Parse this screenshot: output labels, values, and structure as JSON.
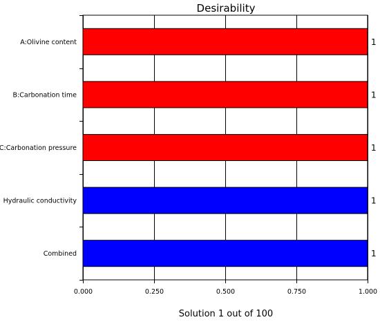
{
  "chart_data": {
    "type": "bar",
    "orientation": "horizontal",
    "title": "Desirability",
    "footer": "Solution 1 out of 100",
    "categories": [
      "A:Olivine content",
      "B:Carbonation time",
      "C:Carbonation pressure",
      "Hydraulic conductivity",
      "Combined"
    ],
    "values": [
      1,
      1,
      1,
      1,
      1
    ],
    "value_labels": [
      "1",
      "1",
      "1",
      "1",
      "1"
    ],
    "bar_colors": [
      "#ff0000",
      "#ff0000",
      "#ff0000",
      "#0000ff",
      "#0000ff"
    ],
    "xlim": [
      0,
      1
    ],
    "xticks": [
      0,
      0.25,
      0.5,
      0.75,
      1
    ],
    "xtick_labels": [
      "0.000",
      "0.250",
      "0.500",
      "0.750",
      "1.000"
    ],
    "grid": true,
    "xlabel": "",
    "ylabel": ""
  }
}
